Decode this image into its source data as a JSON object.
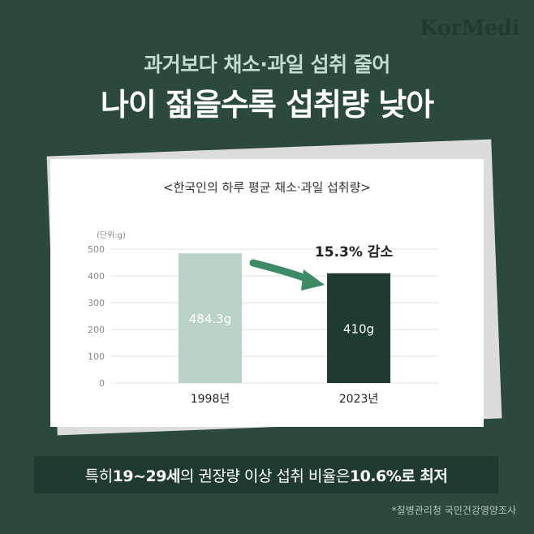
{
  "logo": "KorMedi",
  "header": {
    "subtitle": "과거보다 채소·과일 섭취 줄어",
    "headline": "나이 젊을수록 섭취량 낮아"
  },
  "chart_data": {
    "type": "bar",
    "title": "<한국인의 하루 평균 채소·과일 섭취량>",
    "unit_label": "(단위:g)",
    "categories": [
      "1998년",
      "2023년"
    ],
    "values": [
      484.3,
      410
    ],
    "data_labels": [
      "484.3g",
      "410g"
    ],
    "yticks": [
      0,
      100,
      200,
      300,
      400,
      500
    ],
    "ylim": [
      0,
      500
    ],
    "grid": true,
    "annotation": "15.3% 감소",
    "bar_colors": [
      "#b9d3c7",
      "#1f3a2f"
    ],
    "arrow_color": "#3d8a66"
  },
  "banner": {
    "t1": "특히 ",
    "t2": "19~29세",
    "t3": "의 권장량 이상 섭취 비율은 ",
    "t4": "10.6%로 최저"
  },
  "source": "*질병관리청 국민건강영양조사"
}
